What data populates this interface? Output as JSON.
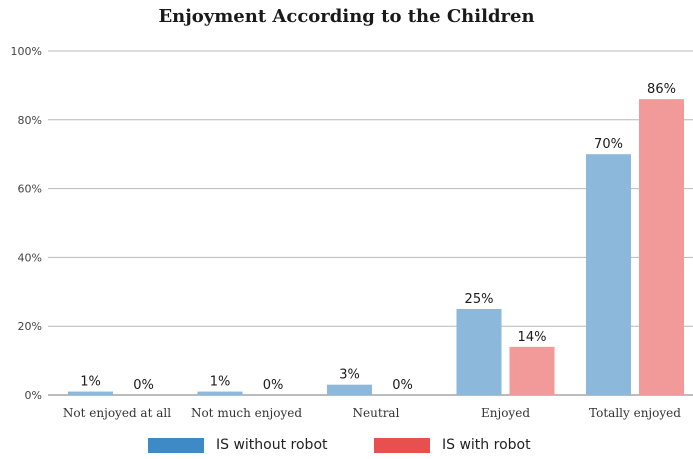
{
  "chart_data": {
    "type": "bar",
    "title": "Enjoyment According to the Children",
    "categories": [
      "Not enjoyed at all",
      "Not much enjoyed",
      "Neutral",
      "Enjoyed",
      "Totally enjoyed"
    ],
    "series": [
      {
        "name": "IS without robot",
        "values": [
          1,
          1,
          3,
          25,
          70
        ],
        "labels": [
          "1%",
          "1%",
          "3%",
          "25%",
          "70%"
        ],
        "color": "#8cb8dc",
        "legend_color": "#3d8ac6"
      },
      {
        "name": "IS with robot",
        "values": [
          0,
          0,
          0,
          14,
          86
        ],
        "labels": [
          "0%",
          "0%",
          "0%",
          "14%",
          "86%"
        ],
        "color": "#f29a9a",
        "legend_color": "#e8504f"
      }
    ],
    "ylim": [
      0,
      100
    ],
    "yticks": [
      0,
      20,
      40,
      60,
      80,
      100
    ],
    "ytick_labels": [
      "0%",
      "20%",
      "40%",
      "60%",
      "80%",
      "100%"
    ],
    "grid": true,
    "legend_position": "bottom"
  }
}
